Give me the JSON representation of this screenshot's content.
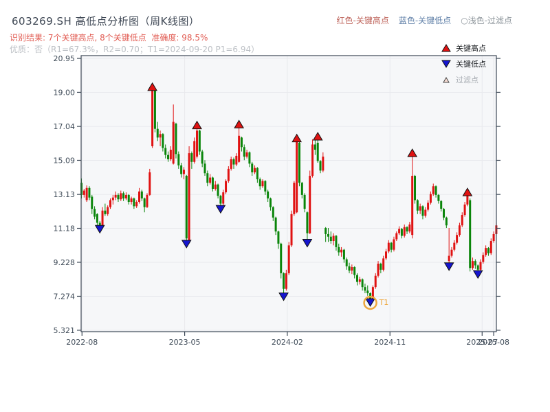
{
  "header": {
    "title": "603269.SH 高低点分析图（周K线图）",
    "result_line": "识别结果: 7个关键高点, 8个关键低点  准确度: 98.5%",
    "quality_line": "优质：否（R1=67.3%，R2=0.70；T1=2024-09-20 P1=6.94）",
    "top_legend": [
      {
        "label": "红色-关键高点",
        "color": "#bd6158"
      },
      {
        "label": "蓝色-关键低点",
        "color": "#6080a8"
      },
      {
        "label": "○浅色-过滤点",
        "color": "#8d959b"
      }
    ]
  },
  "legend_box": {
    "items": [
      {
        "marker": "up-triangle-icon",
        "marker_color": "#e01212",
        "label": "关键高点",
        "muted": false
      },
      {
        "marker": "down-triangle-icon",
        "marker_color": "#1515cf",
        "label": "关键低点",
        "muted": false
      },
      {
        "marker": "hollow-triangle-icon",
        "marker_color": "#f8ddd3",
        "label": "过滤点",
        "muted": true
      }
    ]
  },
  "colors": {
    "candle_up": "#e01212",
    "candle_down": "#0a850a",
    "marker_high": "#e01212",
    "marker_low": "#1515cf",
    "marker_edge": "#111111",
    "annotation_orange": "#eda63b",
    "axis": "#3c4856",
    "tick_label": "#3e4a57",
    "grid": "#e8e9ed",
    "plot_bg": "#f6f7f9"
  },
  "chart_data": {
    "type": "candlestick",
    "freq": "weekly",
    "title": "603269.SH 高低点分析图（周K线图）",
    "ylim": [
      5.24,
      21.11
    ],
    "grid": true,
    "y_ticks": [
      {
        "label": "20.95",
        "value": 20.95
      },
      {
        "label": "19.00",
        "value": 19.0
      },
      {
        "label": "17.04",
        "value": 17.04
      },
      {
        "label": "15.09",
        "value": 15.09
      },
      {
        "label": "13.13",
        "value": 13.13
      },
      {
        "label": "11.18",
        "value": 11.18
      },
      {
        "label": "9.228",
        "value": 9.228
      },
      {
        "label": "7.274",
        "value": 7.274
      },
      {
        "label": "5.321",
        "value": 5.321
      }
    ],
    "x_ticks": [
      {
        "label": "2022-08",
        "week": 0.2
      },
      {
        "label": "2023-05",
        "week": 39.3
      },
      {
        "label": "2024-02",
        "week": 78.4
      },
      {
        "label": "2024-11",
        "week": 117.5
      },
      {
        "label": "2025-07",
        "week": 152.6
      },
      {
        "label": "2025-08",
        "week": 157.0
      }
    ],
    "key_highs": [
      {
        "week": 27,
        "price": 19.3
      },
      {
        "week": 44,
        "price": 17.1
      },
      {
        "week": 60,
        "price": 17.15
      },
      {
        "week": 82,
        "price": 16.35
      },
      {
        "week": 90,
        "price": 16.45
      },
      {
        "week": 126,
        "price": 15.5
      },
      {
        "week": 147,
        "price": 13.25
      }
    ],
    "key_lows": [
      {
        "week": 7,
        "price": 11.15
      },
      {
        "week": 40,
        "price": 10.3
      },
      {
        "week": 53,
        "price": 12.3
      },
      {
        "week": 77,
        "price": 7.27
      },
      {
        "week": 86,
        "price": 10.35
      },
      {
        "week": 110,
        "price": 6.94
      },
      {
        "week": 140,
        "price": 9.0
      },
      {
        "week": 151,
        "price": 8.55
      }
    ],
    "annotation": {
      "label": "T1",
      "week": 110,
      "price": 6.94,
      "date": "2024-09-20"
    },
    "candles": [
      [
        13.8,
        14.05,
        12.9,
        13.1
      ],
      [
        13.1,
        13.45,
        12.95,
        13.35
      ],
      [
        12.8,
        13.65,
        12.7,
        13.5
      ],
      [
        13.5,
        13.6,
        12.8,
        12.95
      ],
      [
        13.0,
        13.1,
        12.0,
        12.3
      ],
      [
        12.3,
        12.45,
        11.7,
        11.85
      ],
      [
        12.0,
        12.05,
        11.3,
        11.5
      ],
      [
        11.5,
        11.6,
        11.15,
        11.3
      ],
      [
        11.3,
        12.4,
        11.25,
        12.2
      ],
      [
        12.2,
        12.6,
        11.9,
        12.0
      ],
      [
        12.0,
        12.5,
        11.9,
        12.4
      ],
      [
        12.4,
        12.9,
        12.3,
        12.8
      ],
      [
        12.8,
        13.1,
        12.55,
        12.95
      ],
      [
        12.95,
        13.3,
        12.8,
        13.1
      ],
      [
        13.1,
        13.2,
        12.7,
        12.85
      ],
      [
        12.85,
        13.35,
        12.75,
        13.2
      ],
      [
        13.2,
        13.3,
        12.75,
        12.9
      ],
      [
        12.9,
        13.25,
        12.8,
        13.1
      ],
      [
        13.1,
        13.15,
        12.55,
        12.7
      ],
      [
        12.7,
        13.0,
        12.55,
        12.9
      ],
      [
        12.9,
        12.95,
        12.3,
        12.45
      ],
      [
        12.45,
        12.8,
        12.35,
        12.7
      ],
      [
        12.7,
        13.5,
        12.6,
        13.3
      ],
      [
        13.3,
        13.4,
        12.75,
        12.9
      ],
      [
        12.9,
        12.95,
        12.1,
        12.4
      ],
      [
        12.4,
        13.2,
        12.35,
        13.1
      ],
      [
        13.1,
        14.6,
        13.05,
        14.4
      ],
      [
        15.9,
        19.3,
        15.8,
        19.2
      ],
      [
        19.1,
        19.2,
        16.7,
        16.9
      ],
      [
        16.9,
        17.3,
        16.2,
        16.4
      ],
      [
        16.4,
        16.8,
        15.9,
        16.6
      ],
      [
        16.6,
        16.65,
        15.6,
        15.8
      ],
      [
        15.8,
        16.0,
        15.2,
        15.4
      ],
      [
        15.4,
        15.6,
        15.0,
        15.15
      ],
      [
        15.15,
        15.9,
        15.05,
        15.7
      ],
      [
        14.9,
        18.3,
        14.85,
        17.3
      ],
      [
        17.2,
        17.25,
        15.2,
        15.45
      ],
      [
        15.45,
        15.6,
        14.6,
        14.8
      ],
      [
        14.8,
        14.95,
        14.1,
        14.3
      ],
      [
        14.3,
        14.7,
        14.0,
        14.55
      ],
      [
        14.2,
        14.25,
        10.3,
        10.6
      ],
      [
        10.5,
        15.9,
        10.3,
        15.5
      ],
      [
        15.5,
        15.6,
        14.6,
        15.0
      ],
      [
        15.0,
        16.4,
        14.9,
        16.2
      ],
      [
        15.3,
        17.1,
        15.2,
        16.8
      ],
      [
        16.8,
        16.85,
        15.4,
        15.6
      ],
      [
        15.6,
        15.7,
        14.7,
        14.9
      ],
      [
        14.9,
        15.1,
        14.2,
        14.35
      ],
      [
        14.35,
        14.5,
        13.6,
        13.8
      ],
      [
        13.8,
        14.3,
        13.7,
        14.1
      ],
      [
        14.1,
        14.15,
        13.3,
        13.45
      ],
      [
        13.45,
        13.9,
        13.35,
        13.7
      ],
      [
        13.7,
        13.75,
        12.9,
        13.05
      ],
      [
        13.05,
        13.1,
        12.3,
        12.6
      ],
      [
        12.6,
        13.4,
        12.5,
        13.25
      ],
      [
        13.25,
        14.0,
        13.15,
        13.9
      ],
      [
        13.9,
        14.75,
        13.8,
        14.6
      ],
      [
        14.6,
        15.3,
        14.5,
        15.15
      ],
      [
        15.15,
        15.25,
        14.6,
        14.85
      ],
      [
        14.85,
        15.5,
        14.75,
        15.35
      ],
      [
        15.0,
        17.15,
        14.95,
        16.5
      ],
      [
        16.4,
        16.45,
        15.6,
        15.85
      ],
      [
        15.85,
        16.0,
        15.1,
        15.3
      ],
      [
        15.3,
        15.7,
        15.2,
        15.55
      ],
      [
        15.55,
        15.6,
        14.7,
        14.9
      ],
      [
        14.9,
        15.0,
        14.2,
        14.4
      ],
      [
        14.4,
        14.8,
        14.3,
        14.65
      ],
      [
        14.65,
        14.7,
        13.8,
        14.0
      ],
      [
        14.0,
        14.1,
        13.4,
        13.6
      ],
      [
        13.6,
        14.0,
        13.5,
        13.9
      ],
      [
        13.9,
        13.95,
        13.1,
        13.3
      ],
      [
        13.3,
        13.4,
        12.7,
        12.9
      ],
      [
        12.9,
        12.95,
        12.2,
        12.4
      ],
      [
        12.4,
        12.45,
        11.6,
        11.8
      ],
      [
        11.8,
        11.85,
        10.8,
        11.0
      ],
      [
        11.0,
        11.05,
        10.0,
        10.3
      ],
      [
        10.3,
        10.35,
        8.3,
        8.6
      ],
      [
        8.6,
        8.65,
        7.27,
        7.7
      ],
      [
        7.7,
        8.8,
        7.6,
        8.6
      ],
      [
        8.6,
        10.4,
        8.5,
        10.2
      ],
      [
        10.2,
        12.2,
        10.1,
        12.0
      ],
      [
        12.0,
        13.9,
        11.9,
        13.8
      ],
      [
        12.1,
        16.35,
        12.05,
        16.3
      ],
      [
        16.1,
        16.15,
        13.6,
        13.8
      ],
      [
        13.8,
        13.85,
        12.9,
        13.1
      ],
      [
        13.1,
        13.2,
        12.1,
        12.3
      ],
      [
        12.1,
        12.15,
        10.35,
        10.9
      ],
      [
        10.9,
        14.5,
        10.85,
        14.2
      ],
      [
        14.2,
        16.3,
        14.1,
        16.0
      ],
      [
        16.0,
        16.3,
        15.4,
        15.7
      ],
      [
        16.1,
        16.45,
        14.95,
        15.05
      ],
      [
        15.05,
        15.1,
        14.35,
        14.5
      ],
      [
        14.5,
        15.55,
        14.4,
        15.3
      ],
      [
        11.2,
        11.25,
        10.4,
        10.85
      ],
      [
        10.85,
        11.2,
        10.4,
        10.7
      ],
      [
        10.7,
        11.0,
        10.3,
        10.45
      ],
      [
        10.45,
        10.9,
        10.2,
        10.75
      ],
      [
        10.75,
        10.8,
        9.9,
        10.1
      ],
      [
        10.1,
        10.3,
        9.6,
        9.8
      ],
      [
        9.8,
        10.1,
        9.55,
        9.95
      ],
      [
        9.95,
        10.0,
        9.2,
        9.4
      ],
      [
        9.4,
        9.5,
        8.8,
        9.0
      ],
      [
        9.0,
        9.2,
        8.6,
        8.75
      ],
      [
        8.75,
        9.1,
        8.55,
        8.95
      ],
      [
        8.95,
        9.0,
        8.3,
        8.5
      ],
      [
        8.5,
        8.6,
        7.9,
        8.1
      ],
      [
        8.1,
        8.4,
        7.95,
        8.25
      ],
      [
        8.25,
        8.3,
        7.6,
        7.8
      ],
      [
        7.8,
        8.0,
        7.45,
        7.6
      ],
      [
        7.6,
        7.9,
        7.3,
        7.45
      ],
      [
        7.45,
        7.5,
        6.94,
        7.15
      ],
      [
        7.15,
        7.9,
        7.05,
        7.8
      ],
      [
        7.8,
        8.6,
        7.7,
        8.45
      ],
      [
        8.45,
        9.3,
        8.35,
        9.15
      ],
      [
        9.15,
        9.2,
        8.6,
        8.8
      ],
      [
        8.8,
        9.6,
        8.7,
        9.45
      ],
      [
        9.45,
        10.0,
        9.35,
        9.85
      ],
      [
        9.85,
        10.5,
        9.75,
        10.35
      ],
      [
        10.35,
        10.4,
        9.8,
        9.95
      ],
      [
        9.95,
        10.7,
        9.85,
        10.55
      ],
      [
        10.55,
        11.0,
        10.45,
        10.9
      ],
      [
        10.9,
        11.3,
        10.8,
        11.15
      ],
      [
        11.15,
        11.2,
        10.6,
        10.75
      ],
      [
        10.75,
        11.4,
        10.65,
        11.25
      ],
      [
        11.25,
        11.3,
        10.85,
        11.0
      ],
      [
        11.0,
        11.55,
        10.9,
        11.4
      ],
      [
        10.8,
        15.5,
        10.6,
        14.2
      ],
      [
        14.2,
        14.25,
        12.6,
        12.8
      ],
      [
        12.8,
        12.85,
        12.0,
        12.2
      ],
      [
        12.2,
        12.6,
        12.0,
        12.45
      ],
      [
        12.45,
        12.5,
        11.7,
        11.9
      ],
      [
        11.9,
        12.4,
        11.8,
        12.25
      ],
      [
        12.25,
        12.8,
        12.15,
        12.65
      ],
      [
        12.65,
        13.3,
        12.55,
        13.15
      ],
      [
        13.15,
        13.75,
        13.05,
        13.6
      ],
      [
        13.6,
        13.65,
        12.95,
        13.1
      ],
      [
        13.1,
        13.15,
        12.6,
        12.75
      ],
      [
        12.75,
        12.8,
        12.15,
        12.3
      ],
      [
        12.3,
        12.35,
        11.65,
        11.8
      ],
      [
        11.8,
        11.85,
        11.2,
        11.35
      ],
      [
        9.3,
        11.2,
        9.0,
        9.6
      ],
      [
        9.6,
        10.1,
        9.5,
        9.95
      ],
      [
        9.95,
        10.5,
        9.85,
        10.35
      ],
      [
        10.35,
        10.95,
        10.25,
        10.8
      ],
      [
        10.8,
        11.5,
        10.7,
        11.35
      ],
      [
        11.35,
        12.1,
        11.25,
        11.95
      ],
      [
        11.95,
        12.7,
        11.85,
        12.55
      ],
      [
        12.55,
        13.25,
        12.45,
        13.05
      ],
      [
        12.8,
        12.9,
        8.7,
        8.9
      ],
      [
        8.9,
        9.5,
        8.8,
        9.3
      ],
      [
        9.3,
        9.4,
        8.85,
        9.05
      ],
      [
        9.05,
        9.1,
        8.55,
        8.8
      ],
      [
        8.8,
        9.4,
        8.7,
        9.25
      ],
      [
        9.25,
        9.8,
        9.15,
        9.65
      ],
      [
        9.65,
        10.2,
        9.55,
        10.05
      ],
      [
        10.05,
        10.1,
        9.6,
        9.75
      ],
      [
        9.75,
        10.6,
        9.65,
        10.45
      ],
      [
        10.45,
        11.0,
        10.35,
        10.85
      ],
      [
        10.85,
        11.5,
        10.75,
        11.35
      ]
    ]
  }
}
